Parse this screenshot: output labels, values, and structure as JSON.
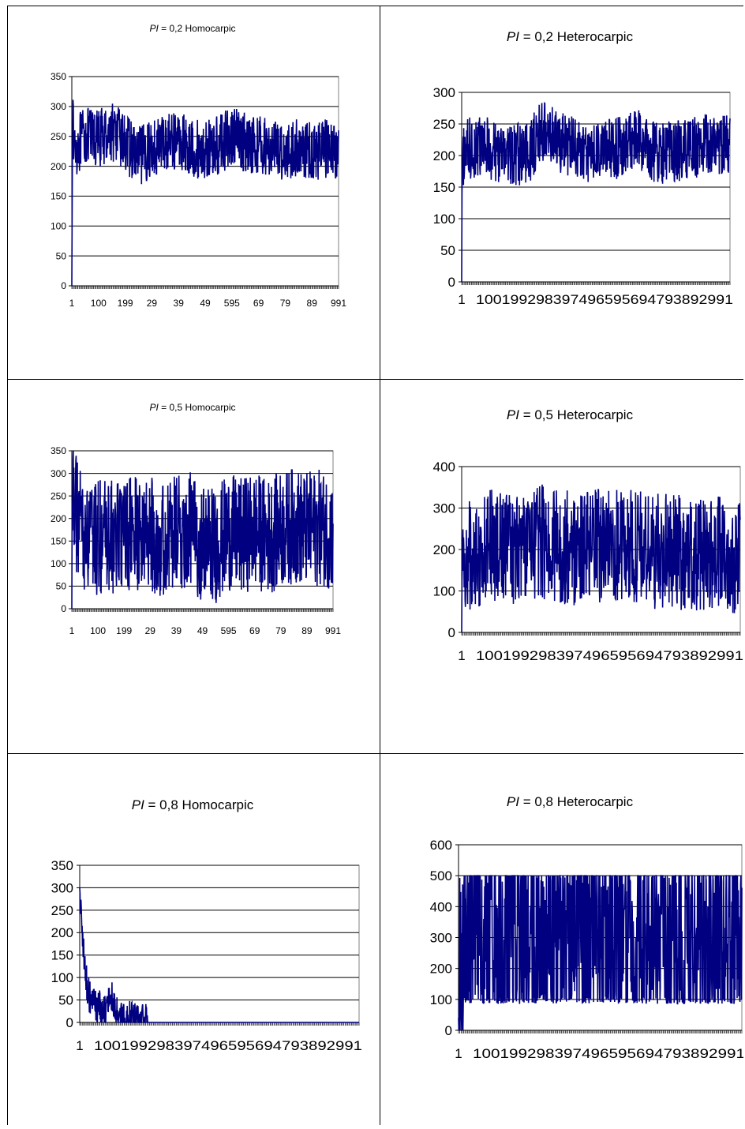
{
  "charts": [
    {
      "title_var": "PI",
      "title_rest": " = 0,2 Homocarpic",
      "y_ticks": [
        "0",
        "50",
        "100",
        "150",
        "200",
        "250",
        "300",
        "350"
      ],
      "x_tick_labels": [
        "1",
        "100",
        "199",
        "29",
        "39",
        "49",
        "595",
        "69",
        "79",
        "89",
        "991"
      ],
      "font_size": "small",
      "chart_data": {
        "type": "line",
        "x_range": [
          1,
          1000
        ],
        "ylim": [
          0,
          350
        ],
        "grid": "horizontal",
        "series": [
          {
            "points": [
              [
                1,
                0
              ],
              [
                3,
                280
              ],
              [
                10,
                230
              ],
              [
                50,
                250
              ],
              [
                100,
                245
              ],
              [
                150,
                260
              ],
              [
                200,
                240
              ],
              [
                250,
                215
              ],
              [
                300,
                230
              ],
              [
                350,
                240
              ],
              [
                400,
                245
              ],
              [
                450,
                230
              ],
              [
                500,
                225
              ],
              [
                550,
                235
              ],
              [
                600,
                250
              ],
              [
                650,
                240
              ],
              [
                700,
                235
              ],
              [
                750,
                230
              ],
              [
                800,
                225
              ],
              [
                850,
                230
              ],
              [
                900,
                225
              ],
              [
                950,
                230
              ],
              [
                1000,
                225
              ]
            ],
            "band": 50
          }
        ]
      }
    },
    {
      "title_var": "PI",
      "title_rest": " = 0,2 Heterocarpic",
      "y_ticks": [
        "0",
        "50",
        "100",
        "150",
        "200",
        "250",
        "300"
      ],
      "x_tick_labels": [
        "1",
        "100199298397496595694793892991"
      ],
      "font_size": "large",
      "chart_data": {
        "type": "line",
        "x_range": [
          1,
          1000
        ],
        "ylim": [
          0,
          300
        ],
        "grid": "horizontal",
        "series": [
          {
            "points": [
              [
                1,
                0
              ],
              [
                3,
                170
              ],
              [
                10,
                205
              ],
              [
                50,
                215
              ],
              [
                100,
                210
              ],
              [
                150,
                205
              ],
              [
                200,
                200
              ],
              [
                250,
                205
              ],
              [
                300,
                240
              ],
              [
                350,
                225
              ],
              [
                400,
                215
              ],
              [
                450,
                205
              ],
              [
                500,
                205
              ],
              [
                550,
                210
              ],
              [
                600,
                215
              ],
              [
                650,
                225
              ],
              [
                700,
                210
              ],
              [
                750,
                205
              ],
              [
                800,
                205
              ],
              [
                850,
                210
              ],
              [
                900,
                215
              ],
              [
                950,
                220
              ],
              [
                1000,
                215
              ]
            ],
            "band": 50
          }
        ]
      }
    },
    {
      "title_var": "PI",
      "title_rest": " = 0,5 Homocarpic",
      "y_ticks": [
        "0",
        "50",
        "100",
        "150",
        "200",
        "250",
        "300",
        "350"
      ],
      "x_tick_labels": [
        "1",
        "100",
        "199",
        "29",
        "39",
        "49",
        "595",
        "69",
        "79",
        "89",
        "991"
      ],
      "font_size": "small",
      "chart_data": {
        "type": "line",
        "x_range": [
          1,
          1000
        ],
        "ylim": [
          0,
          350
        ],
        "grid": "horizontal",
        "series": [
          {
            "points": [
              [
                1,
                0
              ],
              [
                3,
                290
              ],
              [
                20,
                200
              ],
              [
                60,
                150
              ],
              [
                100,
                160
              ],
              [
                150,
                155
              ],
              [
                200,
                160
              ],
              [
                250,
                165
              ],
              [
                300,
                170
              ],
              [
                350,
                150
              ],
              [
                400,
                165
              ],
              [
                450,
                175
              ],
              [
                500,
                145
              ],
              [
                550,
                140
              ],
              [
                600,
                170
              ],
              [
                650,
                160
              ],
              [
                700,
                175
              ],
              [
                750,
                160
              ],
              [
                800,
                175
              ],
              [
                850,
                185
              ],
              [
                900,
                175
              ],
              [
                950,
                180
              ],
              [
                1000,
                170
              ]
            ],
            "band": 130
          }
        ]
      }
    },
    {
      "title_var": "PI",
      "title_rest": " = 0,5 Heterocarpic",
      "y_ticks": [
        "0",
        "100",
        "200",
        "300",
        "400"
      ],
      "x_tick_labels": [
        "1",
        "100199298397496595694793892991"
      ],
      "font_size": "large",
      "chart_data": {
        "type": "line",
        "x_range": [
          1,
          1000
        ],
        "ylim": [
          0,
          400
        ],
        "grid": "horizontal",
        "series": [
          {
            "points": [
              [
                1,
                0
              ],
              [
                3,
                150
              ],
              [
                20,
                180
              ],
              [
                60,
                200
              ],
              [
                100,
                210
              ],
              [
                150,
                215
              ],
              [
                200,
                205
              ],
              [
                250,
                210
              ],
              [
                300,
                220
              ],
              [
                350,
                200
              ],
              [
                400,
                205
              ],
              [
                450,
                200
              ],
              [
                500,
                210
              ],
              [
                550,
                215
              ],
              [
                600,
                205
              ],
              [
                650,
                200
              ],
              [
                700,
                195
              ],
              [
                750,
                200
              ],
              [
                800,
                190
              ],
              [
                850,
                185
              ],
              [
                900,
                190
              ],
              [
                950,
                185
              ],
              [
                1000,
                185
              ]
            ],
            "band": 140
          }
        ]
      }
    },
    {
      "title_var": "PI",
      "title_rest": " = 0,8 Homocarpic",
      "y_ticks": [
        "0",
        "50",
        "100",
        "150",
        "200",
        "250",
        "300",
        "350"
      ],
      "x_tick_labels": [
        "1",
        "100199298397496595694793892991"
      ],
      "font_size": "large",
      "chart_data": {
        "type": "line",
        "x_range": [
          1,
          1000
        ],
        "ylim": [
          0,
          350
        ],
        "grid": "horizontal",
        "series": [
          {
            "points": [
              [
                1,
                300
              ],
              [
                5,
                260
              ],
              [
                10,
                200
              ],
              [
                15,
                150
              ],
              [
                20,
                120
              ],
              [
                25,
                90
              ],
              [
                35,
                60
              ],
              [
                45,
                50
              ],
              [
                55,
                30
              ],
              [
                65,
                40
              ],
              [
                80,
                25
              ],
              [
                95,
                20
              ],
              [
                100,
                60
              ],
              [
                110,
                70
              ],
              [
                120,
                40
              ],
              [
                130,
                20
              ],
              [
                140,
                10
              ],
              [
                160,
                5
              ],
              [
                180,
                8
              ],
              [
                200,
                3
              ],
              [
                230,
                1
              ],
              [
                260,
                0
              ],
              [
                1000,
                0
              ]
            ],
            "band": 40
          }
        ]
      }
    },
    {
      "title_var": "PI",
      "title_rest": " = 0,8 Heterocarpic",
      "y_ticks": [
        "0",
        "100",
        "200",
        "300",
        "400",
        "500",
        "600"
      ],
      "x_tick_labels": [
        "1",
        "100199298397496595694793892991"
      ],
      "font_size": "large",
      "chart_data": {
        "type": "line",
        "x_range": [
          1,
          1000
        ],
        "ylim": [
          0,
          600
        ],
        "grid": "horizontal",
        "series": [
          {
            "points": [
              [
                1,
                40
              ],
              [
                10,
                150
              ],
              [
                30,
                250
              ],
              [
                50,
                300
              ],
              [
                80,
                320
              ],
              [
                100,
                300
              ],
              [
                150,
                300
              ],
              [
                200,
                300
              ],
              [
                250,
                300
              ],
              [
                300,
                300
              ],
              [
                350,
                300
              ],
              [
                400,
                300
              ],
              [
                450,
                290
              ],
              [
                500,
                300
              ],
              [
                550,
                300
              ],
              [
                600,
                300
              ],
              [
                650,
                300
              ],
              [
                700,
                300
              ],
              [
                750,
                300
              ],
              [
                800,
                300
              ],
              [
                850,
                300
              ],
              [
                900,
                300
              ],
              [
                950,
                300
              ],
              [
                1000,
                290
              ]
            ],
            "band": 400
          }
        ]
      }
    }
  ],
  "colors": {
    "line": "#000080",
    "grid": "#000000",
    "axis": "#808080"
  }
}
